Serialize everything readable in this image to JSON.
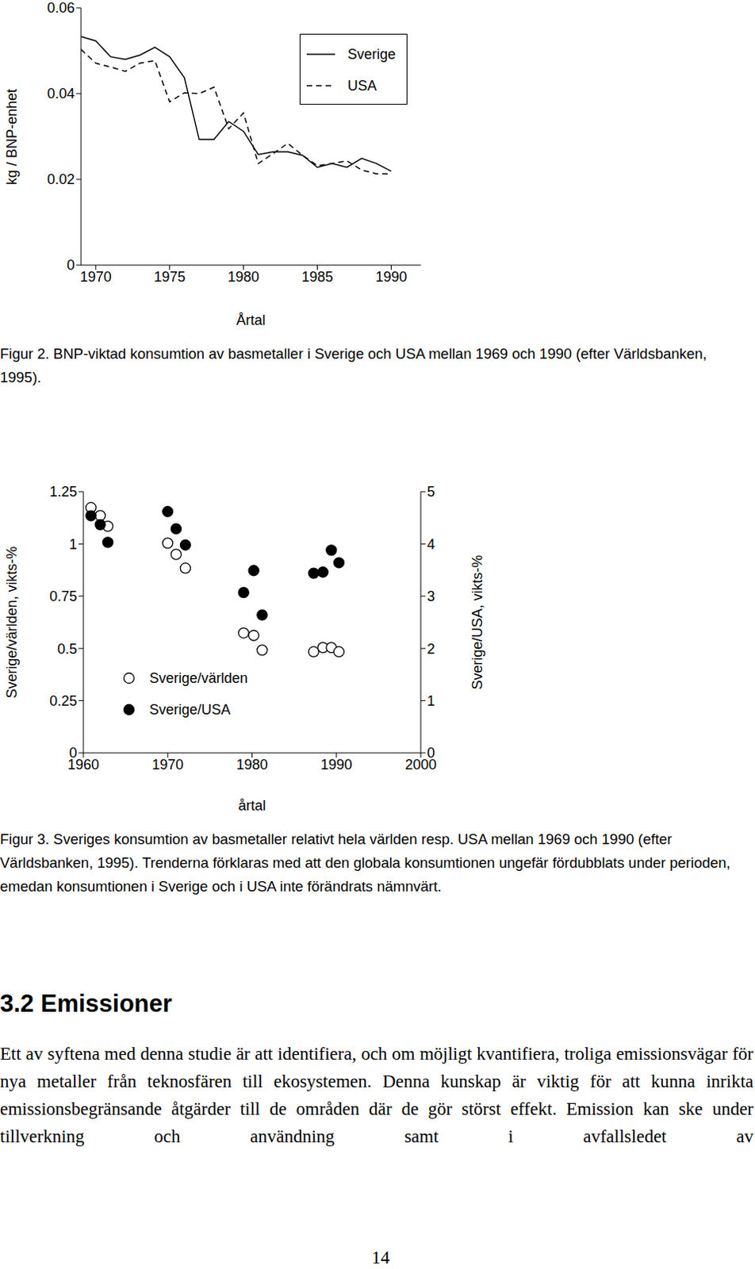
{
  "chart_data": [
    {
      "type": "line",
      "caption": "Figur 2. BNP-viktad konsumtion av basmetaller i Sverige och USA mellan 1969 och 1990 (efter Världsbanken, 1995).",
      "x_label": "Årtal",
      "y_label": "kg / BNP-enhet",
      "x": [
        1969,
        1970,
        1971,
        1972,
        1973,
        1974,
        1975,
        1976,
        1977,
        1978,
        1979,
        1980,
        1981,
        1982,
        1983,
        1984,
        1985,
        1986,
        1987,
        1988,
        1989,
        1990
      ],
      "xlim": [
        1969,
        1992
      ],
      "xticks": [
        1970,
        1975,
        1980,
        1985,
        1990
      ],
      "ylim": [
        0,
        0.06
      ],
      "yticks": [
        0,
        0.02,
        0.04,
        0.06
      ],
      "grid": false,
      "legend": "upper right",
      "series": [
        {
          "name": "Sverige",
          "color": "#000000",
          "line_style": "solid",
          "values": [
            0.0533,
            0.0523,
            0.0486,
            0.048,
            0.049,
            0.0508,
            0.0486,
            0.0437,
            0.0293,
            0.0293,
            0.0335,
            0.0312,
            0.0258,
            0.0264,
            0.0264,
            0.0256,
            0.0228,
            0.0237,
            0.0228,
            0.0249,
            0.0237,
            0.0219
          ]
        },
        {
          "name": "USA",
          "color": "#000000",
          "line_style": "dashed",
          "values": [
            0.0503,
            0.0471,
            0.0462,
            0.0452,
            0.0471,
            0.0477,
            0.0381,
            0.0402,
            0.04,
            0.0415,
            0.0318,
            0.0355,
            0.0237,
            0.026,
            0.0284,
            0.0256,
            0.0232,
            0.0237,
            0.0243,
            0.0222,
            0.0213,
            0.0213
          ]
        }
      ]
    },
    {
      "type": "scatter",
      "caption": "Figur 3. Sveriges konsumtion av basmetaller relativt hela världen resp. USA mellan 1969 och 1990 (efter Världsbanken, 1995). Trenderna förklaras med att den globala konsumtionen ungefär fördubblats under perioden, emedan konsumtionen i Sverige och i USA inte förändrats nämnvärt.",
      "x_label": "årtal",
      "y_label": "Sverige/världen, vikts-%",
      "y2_label": "Sverige/USA, vikts-%",
      "x": [
        1960.9,
        1962,
        1962.9,
        1970,
        1971,
        1972.1,
        1979,
        1980.2,
        1981.2,
        1987.3,
        1988.4,
        1989.4,
        1990.3
      ],
      "xlim": [
        1960,
        2000
      ],
      "xticks": [
        1960,
        1970,
        1980,
        1990,
        2000
      ],
      "ylim": [
        0,
        1.25
      ],
      "yticks": [
        0,
        0.25,
        0.5,
        0.75,
        1,
        1.25
      ],
      "y2lim": [
        0,
        5
      ],
      "y2ticks": [
        0,
        1,
        2,
        3,
        4,
        5
      ],
      "grid": false,
      "legend": "lower left",
      "series": [
        {
          "name": "Sverige/världen",
          "color": "#000000",
          "marker": "open_circle",
          "values": [
            1.174,
            1.136,
            1.085,
            1.004,
            0.95,
            0.884,
            0.574,
            0.562,
            0.492,
            0.484,
            0.504,
            0.504,
            0.484
          ]
        },
        {
          "name": "Sverige/USA",
          "color": "#000000",
          "marker": "filled_circle",
          "axis": "y2",
          "values": [
            4.54,
            4.37,
            4.03,
            4.62,
            4.29,
            3.98,
            3.07,
            3.49,
            2.64,
            3.44,
            3.46,
            3.88,
            3.64
          ]
        }
      ]
    }
  ],
  "section": {
    "heading": "3.2 Emissioner",
    "paragraph": "Ett av syftena med denna studie är att identifiera, och om möjligt kvantifiera, troliga emissionsvägar för nya metaller från teknosfären till ekosystemen. Denna kunskap är viktig för att kunna inrikta emissionsbegränsande åtgärder till de områden där de gör störst effekt. Emission kan ske under tillverkning och användning samt i avfallsledet av"
  },
  "page_number": 14
}
